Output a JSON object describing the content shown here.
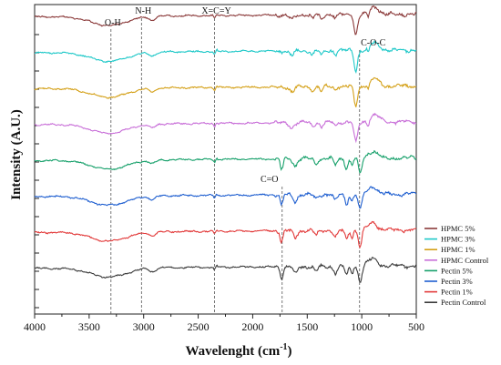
{
  "chart_data": {
    "type": "line",
    "xlabel": "Wavelenght (cm",
    "xlabel_sup": "-1",
    "xlabel_close": ")",
    "ylabel": "Intensity (A.U.)",
    "xlim": [
      4000,
      500
    ],
    "x_reversed": true,
    "x_ticks": [
      "4000",
      "3500",
      "3000",
      "2500",
      "2000",
      "1500",
      "1000",
      "500"
    ],
    "y_ticks_labeled": false,
    "grid": false,
    "legend_position": "bottom-right",
    "annotations": [
      {
        "label": "O-H",
        "x": 3300
      },
      {
        "label": "N-H",
        "x": 3020
      },
      {
        "label": "X=C=Y",
        "x": 2350
      },
      {
        "label": "C=O",
        "x": 1730
      },
      {
        "label": "C-O-C",
        "x": 1020
      }
    ],
    "series": [
      {
        "name": "HPMC 5%",
        "color": "#8b3a3a",
        "offset": 7
      },
      {
        "name": "HPMC 3%",
        "color": "#1ec8c8",
        "offset": 6
      },
      {
        "name": "HPMC 1%",
        "color": "#d4a017",
        "offset": 5
      },
      {
        "name": "HPMC Control",
        "color": "#c86ed8",
        "offset": 4
      },
      {
        "name": "Pectin 5%",
        "color": "#16a06a",
        "offset": 3
      },
      {
        "name": "Pectin 3%",
        "color": "#1f5fd0",
        "offset": 2
      },
      {
        "name": "Pectin 1%",
        "color": "#e23a3a",
        "offset": 1
      },
      {
        "name": "Pectin Control",
        "color": "#3a3a3a",
        "offset": 0
      }
    ]
  }
}
